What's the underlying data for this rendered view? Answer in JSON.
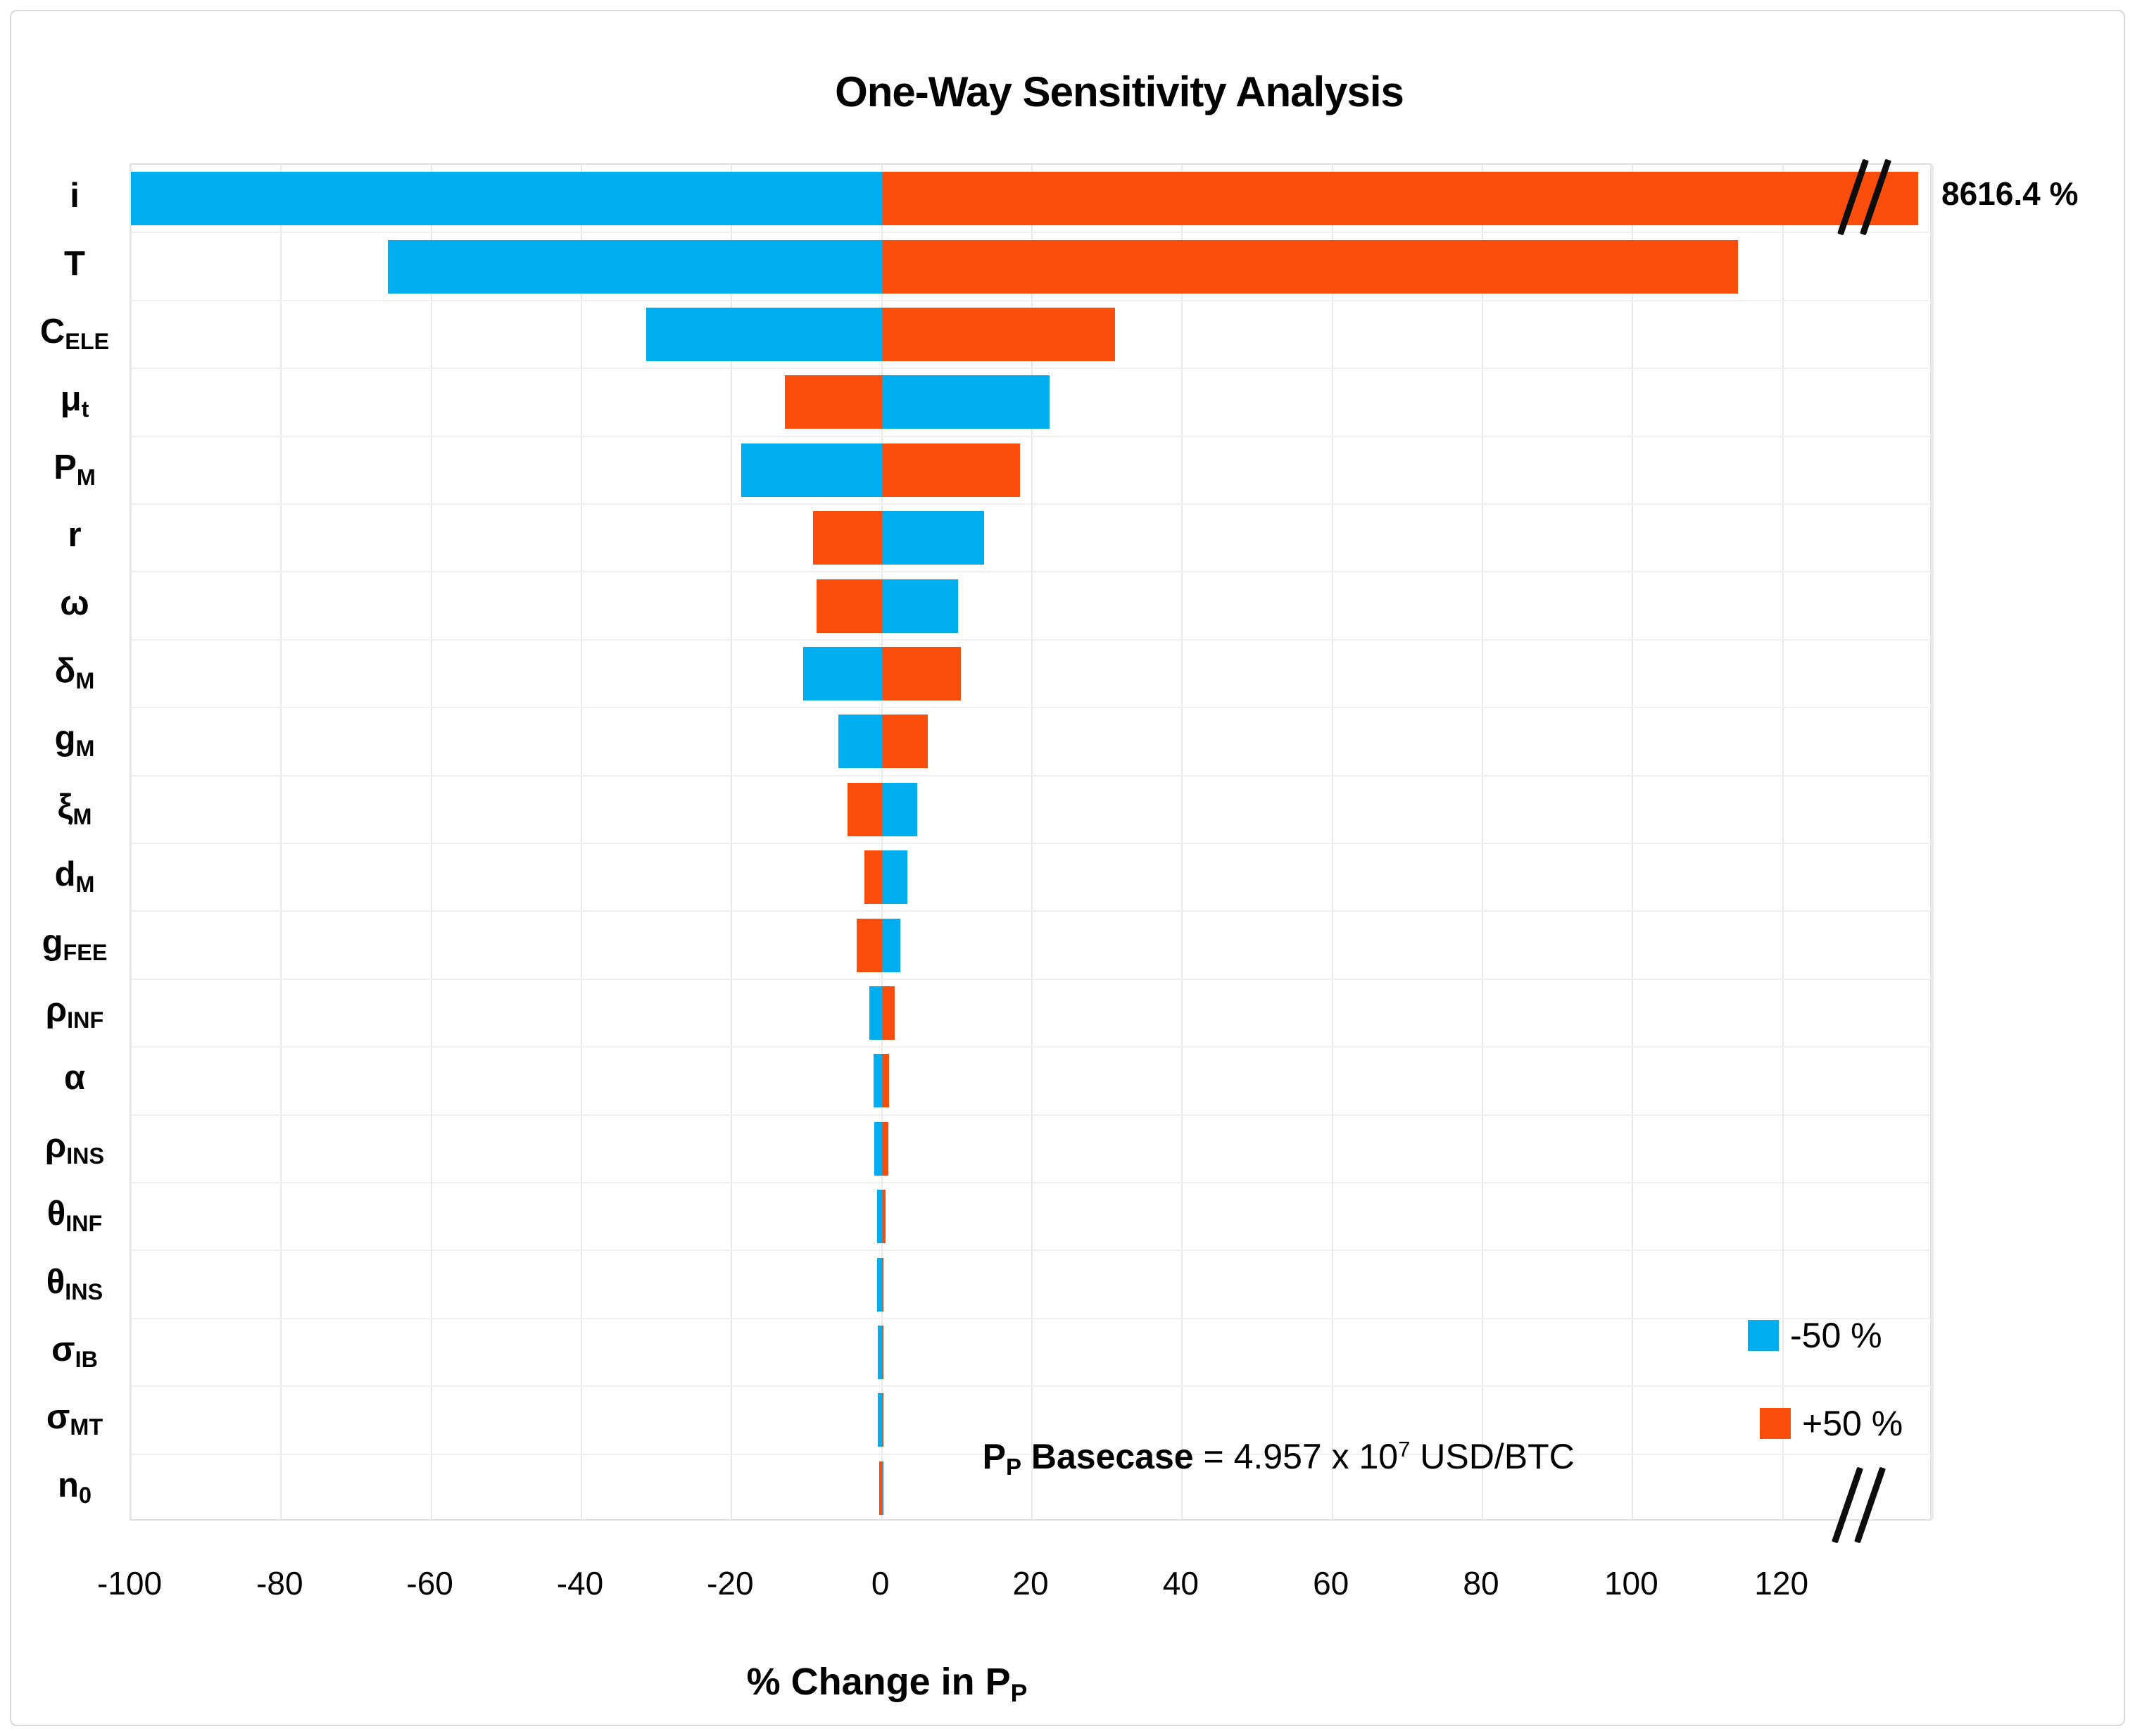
{
  "title": "One-Way Sensitivity Analysis",
  "overflow_label": "8616.4 %",
  "annotation": {
    "bold_main": "P",
    "bold_sub": "P",
    "bold_rest": " Basecase",
    "equals_part": " = 4.957 x 10",
    "exponent": "7",
    "unit_part": " USD/BTC"
  },
  "legend": [
    {
      "label": "-50 %",
      "color": "#00AEEF"
    },
    {
      "label": "+50 %",
      "color": "#FB4E0D"
    }
  ],
  "colors": {
    "minus50": "#00AEEF",
    "plus50": "#FB4E0D",
    "gridline": "#e9e9e9",
    "text": "#000000"
  },
  "chart_data": {
    "type": "bar",
    "subtype": "tornado",
    "title": "One-Way Sensitivity Analysis",
    "xlabel_main": "% Change in P",
    "xlabel_sub": "P",
    "axis": {
      "min": -100,
      "max": 140,
      "tick_step": 20,
      "tick_labels": [
        "-100",
        "-80",
        "-60",
        "-40",
        "-20",
        "0",
        "20",
        "40",
        "60",
        "80",
        "100",
        "120"
      ],
      "axis_break_after": 120,
      "grid": true
    },
    "categories": [
      {
        "t": "i",
        "s": ""
      },
      {
        "t": "T",
        "s": ""
      },
      {
        "t": "C",
        "s": "ELE"
      },
      {
        "t": "μ",
        "s": "t"
      },
      {
        "t": "P",
        "s": "M"
      },
      {
        "t": "r",
        "s": ""
      },
      {
        "t": "ω",
        "s": ""
      },
      {
        "t": "δ",
        "s": "M"
      },
      {
        "t": "g",
        "s": "M"
      },
      {
        "t": "ξ",
        "s": "M"
      },
      {
        "t": "d",
        "s": "M"
      },
      {
        "t": "g",
        "s": "FEE"
      },
      {
        "t": "ρ",
        "s": "INF"
      },
      {
        "t": "α",
        "s": ""
      },
      {
        "t": "ρ",
        "s": "INS"
      },
      {
        "t": "θ",
        "s": "INF"
      },
      {
        "t": "θ",
        "s": "INS"
      },
      {
        "t": "σ",
        "s": "IB"
      },
      {
        "t": "σ",
        "s": "MT"
      },
      {
        "t": "n",
        "s": "0"
      }
    ],
    "series": [
      {
        "name": "-50 %",
        "color": "#00AEEF",
        "values": [
          -100,
          -65.8,
          -31.4,
          22.3,
          -18.7,
          13.6,
          10.2,
          -10.5,
          -5.8,
          4.7,
          3.4,
          2.5,
          -1.7,
          -1.1,
          -1.0,
          -0.6,
          -0.6,
          -0.5,
          -0.5,
          0.05
        ]
      },
      {
        "name": "+50 %",
        "color": "#FB4E0D",
        "values": [
          8616.4,
          114.0,
          31.1,
          -12.9,
          18.4,
          -9.2,
          -8.7,
          10.5,
          6.1,
          -4.6,
          -2.3,
          -3.3,
          1.7,
          1.0,
          0.9,
          0.5,
          0.2,
          0.1,
          0.1,
          -0.3
        ]
      }
    ],
    "clipped_bar": {
      "category": "i",
      "series": "+50 %",
      "true_value": 8616.4,
      "display_value": 138,
      "break_at": 131
    }
  }
}
